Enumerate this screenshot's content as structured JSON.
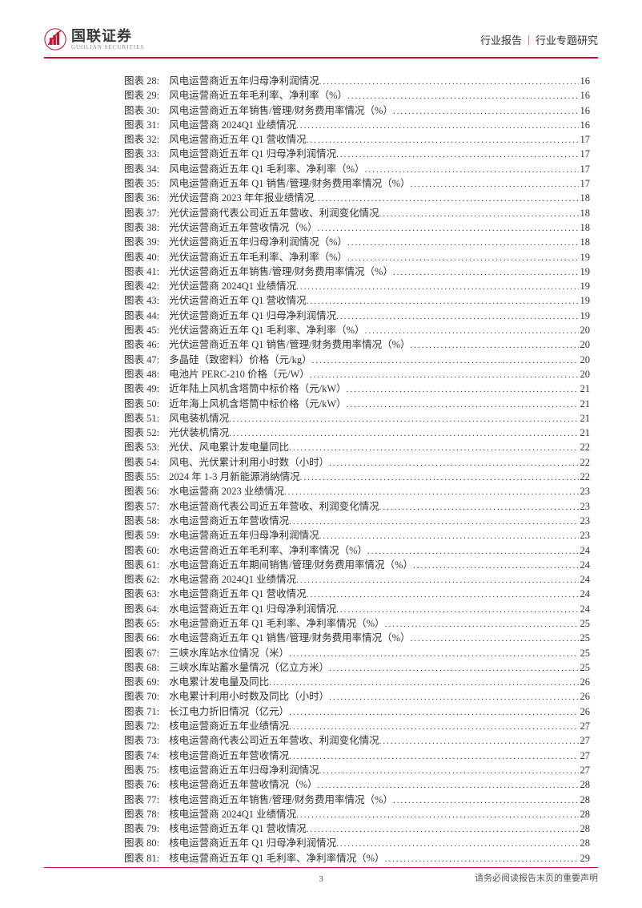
{
  "header": {
    "logo_cn": "国联证券",
    "logo_en": "GUOLIAN SECURITIES",
    "right_left": "行业报告",
    "right_right": "行业专题研究"
  },
  "toc": [
    {
      "label": "图表 28:",
      "title": "风电运营商近五年归母净利润情况",
      "page": "16"
    },
    {
      "label": "图表 29:",
      "title": "风电运营商近五年毛利率、净利率（%）",
      "page": "16"
    },
    {
      "label": "图表 30:",
      "title": "风电运营商近五年销售/管理/财务费用率情况（%）",
      "page": "16"
    },
    {
      "label": "图表 31:",
      "title": "风电运营商 2024Q1 业绩情况",
      "page": "16"
    },
    {
      "label": "图表 32:",
      "title": "风电运营商近五年 Q1 营收情况",
      "page": "17"
    },
    {
      "label": "图表 33:",
      "title": "风电运营商近五年 Q1 归母净利润情况",
      "page": "17"
    },
    {
      "label": "图表 34:",
      "title": "风电运营商近五年 Q1 毛利率、净利率（%）",
      "page": "17"
    },
    {
      "label": "图表 35:",
      "title": "风电运营商近五年 Q1 销售/管理/财务费用率情况（%）",
      "page": "17"
    },
    {
      "label": "图表 36:",
      "title": "光伏运营商 2023 年年报业绩情况",
      "page": "18"
    },
    {
      "label": "图表 37:",
      "title": "光伏运营商代表公司近五年营收、利润变化情况",
      "page": "18"
    },
    {
      "label": "图表 38:",
      "title": "光伏运营商近五年营收情况（%）",
      "page": "18"
    },
    {
      "label": "图表 39:",
      "title": "光伏运营商近五年归母净利润情况（%）",
      "page": "18"
    },
    {
      "label": "图表 40:",
      "title": "光伏运营商近五年毛利率、净利率（%）",
      "page": "19"
    },
    {
      "label": "图表 41:",
      "title": "光伏运营商近五年销售/管理/财务费用率情况（%）",
      "page": "19"
    },
    {
      "label": "图表 42:",
      "title": "光伏运营商 2024Q1 业绩情况",
      "page": "19"
    },
    {
      "label": "图表 43:",
      "title": "光伏运营商近五年 Q1 营收情况",
      "page": "19"
    },
    {
      "label": "图表 44:",
      "title": "光伏运营商近五年 Q1 归母净利润情况",
      "page": "19"
    },
    {
      "label": "图表 45:",
      "title": "光伏运营商近五年 Q1 毛利率、净利率（%）",
      "page": "20"
    },
    {
      "label": "图表 46:",
      "title": "光伏运营商近五年 Q1 销售/管理/财务费用率情况（%）",
      "page": "20"
    },
    {
      "label": "图表 47:",
      "title": "多晶硅（致密料）价格（元/kg）",
      "page": "20"
    },
    {
      "label": "图表 48:",
      "title": "电池片 PERC-210 价格（元/W）",
      "page": "20"
    },
    {
      "label": "图表 49:",
      "title": "近年陆上风机含塔筒中标价格（元/kW）",
      "page": "21"
    },
    {
      "label": "图表 50:",
      "title": "近年海上风机含塔筒中标价格（元/kW）",
      "page": "21"
    },
    {
      "label": "图表 51:",
      "title": "风电装机情况",
      "page": "21"
    },
    {
      "label": "图表 52:",
      "title": "光伏装机情况",
      "page": "21"
    },
    {
      "label": "图表 53:",
      "title": "光伏、风电累计发电量同比",
      "page": "22"
    },
    {
      "label": "图表 54:",
      "title": "风电、光伏累计利用小时数（小时）",
      "page": "22"
    },
    {
      "label": "图表 55:",
      "title": "2024 年 1-3 月新能源消纳情况",
      "page": "22"
    },
    {
      "label": "图表 56:",
      "title": "水电运营商 2023 业绩情况",
      "page": "23"
    },
    {
      "label": "图表 57:",
      "title": "水电运营商代表公司近五年营收、利润变化情况",
      "page": "23"
    },
    {
      "label": "图表 58:",
      "title": "水电运营商近五年营收情况",
      "page": "23"
    },
    {
      "label": "图表 59:",
      "title": "水电运营商近五年归母净利润情况",
      "page": "23"
    },
    {
      "label": "图表 60:",
      "title": "水电运营商近五年毛利率、净利率情况（%）",
      "page": "24"
    },
    {
      "label": "图表 61:",
      "title": "水电运营商近五年期间销售/管理/财务费用率情况（%）",
      "page": "24"
    },
    {
      "label": "图表 62:",
      "title": "水电运营商 2024Q1 业绩情况",
      "page": "24"
    },
    {
      "label": "图表 63:",
      "title": "水电运营商近五年 Q1 营收情况",
      "page": "24"
    },
    {
      "label": "图表 64:",
      "title": "水电运营商近五年 Q1 归母净利润情况",
      "page": "24"
    },
    {
      "label": "图表 65:",
      "title": "水电运营商近五年 Q1 毛利率、净利率情况（%）",
      "page": "25"
    },
    {
      "label": "图表 66:",
      "title": "水电运营商近五年 Q1 销售/管理/财务费用率情况（%）",
      "page": "25"
    },
    {
      "label": "图表 67:",
      "title": "三峡水库站水位情况（米）",
      "page": "25"
    },
    {
      "label": "图表 68:",
      "title": "三峡水库站蓄水量情况（亿立方米）",
      "page": "25"
    },
    {
      "label": "图表 69:",
      "title": "水电累计发电量及同比",
      "page": "26"
    },
    {
      "label": "图表 70:",
      "title": "水电累计利用小时数及同比（小时）",
      "page": "26"
    },
    {
      "label": "图表 71:",
      "title": "长江电力折旧情况（亿元）",
      "page": "26"
    },
    {
      "label": "图表 72:",
      "title": "核电运营商近五年业绩情况",
      "page": "27"
    },
    {
      "label": "图表 73:",
      "title": "核电运营商代表公司近五年营收、利润变化情况",
      "page": "27"
    },
    {
      "label": "图表 74:",
      "title": "核电运营商近五年营收情况",
      "page": "27"
    },
    {
      "label": "图表 75:",
      "title": "核电运营商近五年归母净利润情况",
      "page": "27"
    },
    {
      "label": "图表 76:",
      "title": "核电运营商近五年营收情况（%）",
      "page": "28"
    },
    {
      "label": "图表 77:",
      "title": "核电运营商近五年销售/管理/财务费用率情况（%）",
      "page": "28"
    },
    {
      "label": "图表 78:",
      "title": "核电运营商 2024Q1 业绩情况",
      "page": "28"
    },
    {
      "label": "图表 79:",
      "title": "核电运营商近五年 Q1 营收情况",
      "page": "28"
    },
    {
      "label": "图表 80:",
      "title": "核电运营商近五年 Q1 归母净利润情况",
      "page": "28"
    },
    {
      "label": "图表 81:",
      "title": "核电运营商近五年 Q1 毛利率、净利率情况（%）",
      "page": "29"
    }
  ],
  "footer": {
    "page_number": "3",
    "disclaimer": "请务必阅读报告末页的重要声明"
  },
  "colors": {
    "brand_red": "#c8102e",
    "text": "#333333",
    "logo_gray": "#3a3a3a"
  }
}
